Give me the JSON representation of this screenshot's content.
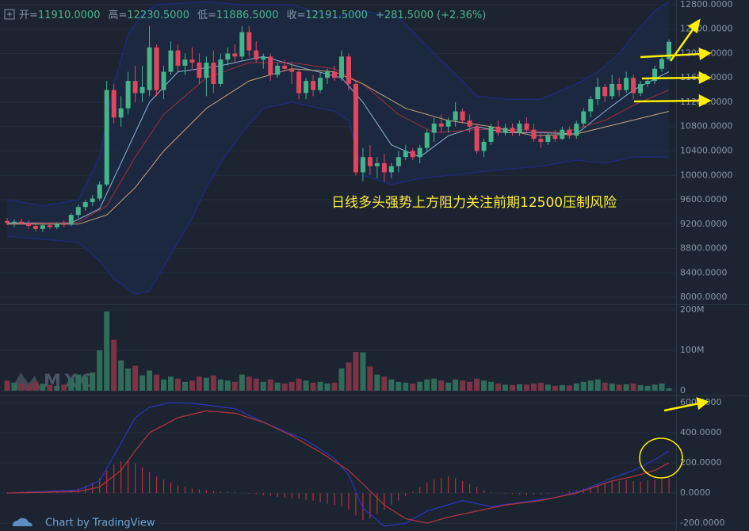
{
  "header": {
    "items": [
      {
        "label": "开=",
        "value": "11910.0000"
      },
      {
        "label": "高=",
        "value": "12230.5000"
      },
      {
        "label": "低=",
        "value": "11886.5000"
      },
      {
        "label": "收=",
        "value": "12191.5000"
      },
      {
        "value": "+281.5000 (+2.36%)"
      }
    ]
  },
  "footer": "Chart by TradingView",
  "chart_data": [
    {
      "type": "candlestick",
      "annotation": "日线多头强势上方阻力关注前期12500压制风险",
      "xlim": [
        -1,
        94
      ],
      "ylim": [
        7896,
        12878
      ],
      "up_color": "#45b48a",
      "down_color": "#e0475f",
      "yticks": [
        {
          "value": 8000,
          "label": "8000.0000"
        },
        {
          "value": 8400,
          "label": "8400.0000"
        },
        {
          "value": 8800,
          "label": "8800.0000"
        },
        {
          "value": 9200,
          "label": "9200.0000"
        },
        {
          "value": 9600,
          "label": "9600.0000"
        },
        {
          "value": 10000,
          "label": "10000.0000"
        },
        {
          "value": 10400,
          "label": "10400.0000"
        },
        {
          "value": 10800,
          "label": "10800.0000"
        },
        {
          "value": 11200,
          "label": "11200.0000"
        },
        {
          "value": 11600,
          "label": "11600.0000"
        },
        {
          "value": 12000,
          "label": "12000.0000"
        },
        {
          "value": 12400,
          "label": "12400.0000"
        },
        {
          "value": 12800,
          "label": "12800.0000"
        }
      ],
      "ohlc": [
        [
          9250,
          9300,
          9180,
          9220
        ],
        [
          9220,
          9280,
          9150,
          9240
        ],
        [
          9240,
          9290,
          9190,
          9210
        ],
        [
          9210,
          9260,
          9120,
          9170
        ],
        [
          9170,
          9230,
          9080,
          9120
        ],
        [
          9120,
          9200,
          9070,
          9180
        ],
        [
          9180,
          9220,
          9120,
          9150
        ],
        [
          9150,
          9230,
          9120,
          9200
        ],
        [
          9200,
          9260,
          9150,
          9190
        ],
        [
          9190,
          9380,
          9170,
          9350
        ],
        [
          9350,
          9520,
          9300,
          9480
        ],
        [
          9480,
          9600,
          9420,
          9560
        ],
        [
          9560,
          9680,
          9500,
          9620
        ],
        [
          9620,
          9900,
          9580,
          9850
        ],
        [
          9850,
          11550,
          9820,
          11400
        ],
        [
          11400,
          11500,
          10850,
          10950
        ],
        [
          10950,
          11300,
          10800,
          11100
        ],
        [
          11100,
          11700,
          11000,
          11550
        ],
        [
          11550,
          11800,
          11200,
          11350
        ],
        [
          11350,
          11800,
          11200,
          11450
        ],
        [
          11400,
          12450,
          11300,
          12100
        ],
        [
          12100,
          12150,
          11300,
          11400
        ],
        [
          11400,
          11800,
          11250,
          11700
        ],
        [
          11700,
          12200,
          11650,
          12050
        ],
        [
          12050,
          12150,
          11700,
          11800
        ],
        [
          11800,
          12000,
          11650,
          11900
        ],
        [
          11900,
          12100,
          11750,
          11850
        ],
        [
          11850,
          12000,
          11500,
          11600
        ],
        [
          11600,
          11950,
          11300,
          11850
        ],
        [
          11850,
          12050,
          11350,
          11500
        ],
        [
          11500,
          12000,
          11450,
          11900
        ],
        [
          11900,
          12100,
          11800,
          12000
        ],
        [
          12000,
          12150,
          11850,
          11950
        ],
        [
          11950,
          12450,
          11900,
          12350
        ],
        [
          12350,
          12450,
          11950,
          12050
        ],
        [
          12050,
          12200,
          11850,
          11900
        ],
        [
          11900,
          12000,
          11750,
          11950
        ],
        [
          11950,
          12000,
          11550,
          11650
        ],
        [
          11650,
          11850,
          11600,
          11800
        ],
        [
          11800,
          11900,
          11700,
          11750
        ],
        [
          11750,
          11850,
          11500,
          11700
        ],
        [
          11700,
          11750,
          11250,
          11350
        ],
        [
          11350,
          11600,
          11250,
          11550
        ],
        [
          11550,
          11650,
          11300,
          11400
        ],
        [
          11400,
          11700,
          11350,
          11600
        ],
        [
          11600,
          11750,
          11500,
          11700
        ],
        [
          11700,
          11800,
          11550,
          11600
        ],
        [
          11600,
          12050,
          11550,
          11950
        ],
        [
          11950,
          12000,
          11400,
          11500
        ],
        [
          11500,
          11550,
          10000,
          10050
        ],
        [
          10050,
          10450,
          9900,
          10300
        ],
        [
          10300,
          10500,
          10000,
          10150
        ],
        [
          10150,
          10300,
          9950,
          10200
        ],
        [
          10200,
          10350,
          9900,
          10050
        ],
        [
          10050,
          10200,
          9950,
          10150
        ],
        [
          10150,
          10400,
          10050,
          10300
        ],
        [
          10300,
          10500,
          10250,
          10400
        ],
        [
          10400,
          10450,
          10250,
          10300
        ],
        [
          10300,
          10500,
          10200,
          10450
        ],
        [
          10450,
          10750,
          10400,
          10700
        ],
        [
          10700,
          10950,
          10550,
          10850
        ],
        [
          10850,
          11000,
          10700,
          10800
        ],
        [
          10800,
          10950,
          10700,
          10900
        ],
        [
          10900,
          11200,
          10800,
          11050
        ],
        [
          11050,
          11100,
          10850,
          10900
        ],
        [
          10900,
          11000,
          10700,
          10800
        ],
        [
          10800,
          10850,
          10350,
          10400
        ],
        [
          10400,
          10600,
          10300,
          10550
        ],
        [
          10550,
          10850,
          10500,
          10800
        ],
        [
          10800,
          10900,
          10650,
          10700
        ],
        [
          10700,
          10850,
          10650,
          10780
        ],
        [
          10780,
          10850,
          10650,
          10700
        ],
        [
          10700,
          10900,
          10650,
          10850
        ],
        [
          10850,
          10950,
          10700,
          10750
        ],
        [
          10750,
          10850,
          10550,
          10600
        ],
        [
          10600,
          10700,
          10450,
          10550
        ],
        [
          10550,
          10700,
          10500,
          10650
        ],
        [
          10650,
          10750,
          10550,
          10600
        ],
        [
          10600,
          10800,
          10580,
          10750
        ],
        [
          10750,
          10800,
          10600,
          10650
        ],
        [
          10650,
          10900,
          10600,
          10850
        ],
        [
          10850,
          11100,
          10800,
          11050
        ],
        [
          11050,
          11300,
          10950,
          11250
        ],
        [
          11250,
          11600,
          11150,
          11450
        ],
        [
          11450,
          11500,
          11200,
          11300
        ],
        [
          11300,
          11650,
          11250,
          11500
        ],
        [
          11500,
          11600,
          11300,
          11400
        ],
        [
          11400,
          11700,
          11350,
          11600
        ],
        [
          11600,
          11650,
          11250,
          11350
        ],
        [
          11350,
          11550,
          11300,
          11500
        ],
        [
          11500,
          11600,
          11450,
          11550
        ],
        [
          11550,
          11800,
          11500,
          11750
        ],
        [
          11750,
          11950,
          11700,
          11910
        ],
        [
          11910,
          12230.5,
          11886.5,
          12191.5
        ]
      ],
      "band": {
        "color": "#1e2a78",
        "fill": "#1c2944",
        "upper": {
          "x": [
            0,
            5,
            10,
            13,
            15,
            17,
            19,
            21,
            28,
            33,
            40,
            46,
            50,
            55,
            60,
            64,
            66,
            70,
            75,
            80,
            83,
            86,
            88,
            91,
            93
          ],
          "values": [
            9600,
            9500,
            9600,
            10300,
            11500,
            12300,
            12650,
            12800,
            12850,
            12800,
            12800,
            12600,
            12700,
            12600,
            12000,
            11550,
            11300,
            11250,
            11250,
            11500,
            11700,
            12000,
            12300,
            12700,
            12850
          ]
        },
        "lower": {
          "x": [
            0,
            5,
            10,
            13,
            15,
            18,
            20,
            22,
            24,
            26,
            28,
            30,
            33,
            36,
            40,
            44,
            46,
            48,
            50,
            54,
            58,
            62,
            66,
            70,
            75,
            80,
            84,
            88,
            93
          ],
          "values": [
            9000,
            8950,
            8900,
            8600,
            8300,
            8050,
            8100,
            8500,
            8900,
            9300,
            9800,
            10200,
            10700,
            11100,
            11200,
            11100,
            11050,
            10900,
            10000,
            9850,
            9950,
            10000,
            10050,
            10100,
            10150,
            10250,
            10200,
            10300,
            10300
          ]
        }
      },
      "overlays": [
        {
          "color": "#8fb3d9",
          "x": [
            0,
            9,
            13,
            16,
            20,
            24,
            30,
            36,
            42,
            47,
            50,
            54,
            58,
            62,
            66,
            70,
            75,
            80,
            84,
            88,
            93
          ],
          "values": [
            9220,
            9220,
            9450,
            10200,
            11200,
            11700,
            11800,
            11950,
            11750,
            11600,
            11200,
            10500,
            10300,
            10650,
            10800,
            10700,
            10700,
            10680,
            11050,
            11400,
            11700
          ]
        },
        {
          "color": "#a3303d",
          "x": [
            0,
            10,
            14,
            18,
            22,
            28,
            34,
            40,
            46,
            50,
            55,
            60,
            66,
            72,
            78,
            84,
            88,
            93
          ],
          "values": [
            9200,
            9230,
            9500,
            10300,
            11000,
            11600,
            11850,
            11850,
            11750,
            11500,
            11000,
            10700,
            10750,
            10750,
            10700,
            10900,
            11150,
            11400
          ]
        },
        {
          "color": "#c9a47a",
          "x": [
            0,
            10,
            14,
            18,
            22,
            28,
            34,
            40,
            46,
            50,
            56,
            62,
            68,
            74,
            80,
            86,
            93
          ],
          "values": [
            9200,
            9200,
            9350,
            9800,
            10400,
            11100,
            11550,
            11750,
            11700,
            11500,
            11100,
            10900,
            10800,
            10650,
            10680,
            10850,
            11050
          ]
        }
      ]
    },
    {
      "type": "volume",
      "watermark": "MXC",
      "xlim": [
        -1,
        94
      ],
      "ylim": [
        -7.8,
        209.7
      ],
      "up_color": "#2f6d5a",
      "down_color": "#7b3445",
      "yticks": [
        0,
        {
          "value": 100,
          "label": "100M"
        },
        {
          "value": 200,
          "label": "200M"
        }
      ],
      "values": [
        25,
        20,
        18,
        15,
        22,
        17,
        14,
        12,
        15,
        30,
        40,
        35,
        45,
        100,
        196,
        126,
        75,
        55,
        62,
        38,
        50,
        40,
        28,
        35,
        30,
        22,
        25,
        35,
        32,
        38,
        28,
        25,
        22,
        40,
        35,
        30,
        22,
        28,
        20,
        18,
        22,
        30,
        25,
        20,
        22,
        18,
        20,
        55,
        70,
        96,
        95,
        60,
        40,
        35,
        28,
        22,
        20,
        18,
        22,
        28,
        30,
        25,
        20,
        28,
        25,
        22,
        30,
        25,
        22,
        18,
        15,
        14,
        16,
        15,
        18,
        20,
        15,
        12,
        14,
        13,
        18,
        22,
        25,
        28,
        20,
        18,
        15,
        16,
        18,
        14,
        12,
        15,
        18,
        6
      ]
    },
    {
      "type": "macd",
      "xlim": [
        -1,
        94
      ],
      "ylim": [
        -252,
        642
      ],
      "histogram_color": "#b8323a",
      "yticks": [
        {
          "value": -200,
          "label": "-200.0000"
        },
        {
          "value": 0,
          "label": "0.0000"
        },
        {
          "value": 200,
          "label": "200.0000"
        },
        {
          "value": 400,
          "label": "400.0000"
        },
        {
          "value": 600,
          "label": "600.0000"
        }
      ],
      "histogram": [
        5,
        8,
        10,
        12,
        10,
        8,
        10,
        12,
        15,
        20,
        30,
        50,
        70,
        100,
        150,
        190,
        210,
        220,
        200,
        170,
        140,
        110,
        90,
        70,
        50,
        40,
        30,
        25,
        20,
        15,
        10,
        8,
        5,
        0,
        -5,
        -10,
        -15,
        -20,
        -25,
        -30,
        -35,
        -40,
        -45,
        -50,
        -60,
        -70,
        -80,
        -90,
        -110,
        -150,
        -180,
        -170,
        -140,
        -110,
        -80,
        -50,
        -20,
        10,
        40,
        70,
        90,
        100,
        110,
        100,
        80,
        60,
        40,
        20,
        5,
        0,
        -5,
        -8,
        -10,
        -15,
        -10,
        -8,
        -5,
        0,
        5,
        10,
        20,
        30,
        45,
        60,
        70,
        75,
        80,
        85,
        80,
        75,
        85,
        90,
        95,
        100
      ],
      "lines": [
        {
          "color": "#2a35b8",
          "x": [
            0,
            10,
            13,
            16,
            18,
            20,
            23,
            26,
            32,
            37,
            42,
            46,
            48,
            50,
            53,
            56,
            59,
            64,
            68,
            77,
            81,
            85,
            88,
            91,
            93
          ],
          "values": [
            0,
            20,
            80,
            330,
            500,
            570,
            600,
            595,
            560,
            450,
            350,
            230,
            120,
            -100,
            -220,
            -200,
            -120,
            -50,
            -90,
            -30,
            20,
            100,
            150,
            220,
            280
          ]
        },
        {
          "color": "#b0343a",
          "x": [
            0,
            10,
            13,
            16,
            18,
            20,
            24,
            28,
            32,
            36,
            40,
            44,
            48,
            50,
            53,
            56,
            59,
            62,
            66,
            70,
            75,
            80,
            85,
            88,
            91,
            93
          ],
          "values": [
            0,
            10,
            40,
            150,
            280,
            400,
            500,
            545,
            530,
            470,
            380,
            270,
            150,
            60,
            -80,
            -170,
            -200,
            -160,
            -120,
            -80,
            -50,
            0,
            80,
            110,
            150,
            200
          ]
        }
      ]
    }
  ]
}
